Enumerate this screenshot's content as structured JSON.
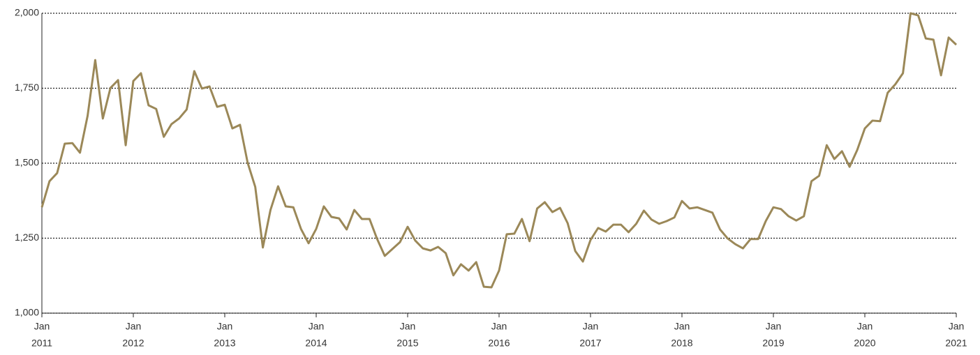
{
  "chart_data": {
    "type": "line",
    "x": [
      "2011-01",
      "2011-02",
      "2011-03",
      "2011-04",
      "2011-05",
      "2011-06",
      "2011-07",
      "2011-08",
      "2011-09",
      "2011-10",
      "2011-11",
      "2011-12",
      "2012-01",
      "2012-02",
      "2012-03",
      "2012-04",
      "2012-05",
      "2012-06",
      "2012-07",
      "2012-08",
      "2012-09",
      "2012-10",
      "2012-11",
      "2012-12",
      "2013-01",
      "2013-02",
      "2013-03",
      "2013-04",
      "2013-05",
      "2013-06",
      "2013-07",
      "2013-08",
      "2013-09",
      "2013-10",
      "2013-11",
      "2013-12",
      "2014-01",
      "2014-02",
      "2014-03",
      "2014-04",
      "2014-05",
      "2014-06",
      "2014-07",
      "2014-08",
      "2014-09",
      "2014-10",
      "2014-11",
      "2014-12",
      "2015-01",
      "2015-02",
      "2015-03",
      "2015-04",
      "2015-05",
      "2015-06",
      "2015-07",
      "2015-08",
      "2015-09",
      "2015-10",
      "2015-11",
      "2015-12",
      "2016-01",
      "2016-02",
      "2016-03",
      "2016-04",
      "2016-05",
      "2016-06",
      "2016-07",
      "2016-08",
      "2016-09",
      "2016-10",
      "2016-11",
      "2016-12",
      "2017-01",
      "2017-02",
      "2017-03",
      "2017-04",
      "2017-05",
      "2017-06",
      "2017-07",
      "2017-08",
      "2017-09",
      "2017-10",
      "2017-11",
      "2017-12",
      "2018-01",
      "2018-02",
      "2018-03",
      "2018-04",
      "2018-05",
      "2018-06",
      "2018-07",
      "2018-08",
      "2018-09",
      "2018-10",
      "2018-11",
      "2018-12",
      "2019-01",
      "2019-02",
      "2019-03",
      "2019-04",
      "2019-05",
      "2019-06",
      "2019-07",
      "2019-08",
      "2019-09",
      "2019-10",
      "2019-11",
      "2019-12",
      "2020-01",
      "2020-02",
      "2020-03",
      "2020-04",
      "2020-05",
      "2020-06",
      "2020-07",
      "2020-08",
      "2020-09",
      "2020-10",
      "2020-11",
      "2020-12",
      "2021-01"
    ],
    "series": [
      {
        "color": "#9b8858",
        "values": [
          1353,
          1440,
          1467,
          1565,
          1567,
          1535,
          1658,
          1844,
          1649,
          1751,
          1777,
          1560,
          1774,
          1800,
          1693,
          1681,
          1588,
          1630,
          1649,
          1679,
          1807,
          1749,
          1756,
          1688,
          1695,
          1616,
          1628,
          1502,
          1421,
          1219,
          1344,
          1423,
          1356,
          1353,
          1281,
          1233,
          1281,
          1356,
          1321,
          1316,
          1279,
          1344,
          1314,
          1314,
          1247,
          1191,
          1214,
          1237,
          1288,
          1242,
          1216,
          1209,
          1221,
          1200,
          1126,
          1163,
          1142,
          1170,
          1088,
          1086,
          1142,
          1263,
          1265,
          1314,
          1240,
          1349,
          1370,
          1337,
          1351,
          1300,
          1207,
          1172,
          1244,
          1284,
          1272,
          1295,
          1295,
          1270,
          1298,
          1342,
          1312,
          1298,
          1307,
          1319,
          1374,
          1349,
          1353,
          1344,
          1335,
          1279,
          1249,
          1230,
          1216,
          1247,
          1247,
          1307,
          1353,
          1347,
          1323,
          1309,
          1323,
          1440,
          1458,
          1560,
          1514,
          1540,
          1488,
          1544,
          1616,
          1642,
          1640,
          1735,
          1763,
          1800,
          2000,
          1993,
          1916,
          1912,
          1793,
          1919,
          1895
        ]
      }
    ],
    "ylim": [
      1000,
      2000
    ],
    "yticks": [
      {
        "value": 1000,
        "label": "1,000"
      },
      {
        "value": 1250,
        "label": "1,250"
      },
      {
        "value": 1500,
        "label": "1,500"
      },
      {
        "value": 1750,
        "label": "1,750"
      },
      {
        "value": 2000,
        "label": "2,000"
      }
    ],
    "xlim": [
      "2011-01",
      "2021-01"
    ],
    "xticks": [
      {
        "value": "2011-01",
        "label": [
          "Jan",
          "2011"
        ]
      },
      {
        "value": "2012-01",
        "label": [
          "Jan",
          "2012"
        ]
      },
      {
        "value": "2013-01",
        "label": [
          "Jan",
          "2013"
        ]
      },
      {
        "value": "2014-01",
        "label": [
          "Jan",
          "2014"
        ]
      },
      {
        "value": "2015-01",
        "label": [
          "Jan",
          "2015"
        ]
      },
      {
        "value": "2016-01",
        "label": [
          "Jan",
          "2016"
        ]
      },
      {
        "value": "2017-01",
        "label": [
          "Jan",
          "2017"
        ]
      },
      {
        "value": "2018-01",
        "label": [
          "Jan",
          "2018"
        ]
      },
      {
        "value": "2019-01",
        "label": [
          "Jan",
          "2019"
        ]
      },
      {
        "value": "2020-01",
        "label": [
          "Jan",
          "2020"
        ]
      },
      {
        "value": "2021-01",
        "label": [
          "Jan",
          "2021"
        ]
      }
    ],
    "grid": true
  }
}
